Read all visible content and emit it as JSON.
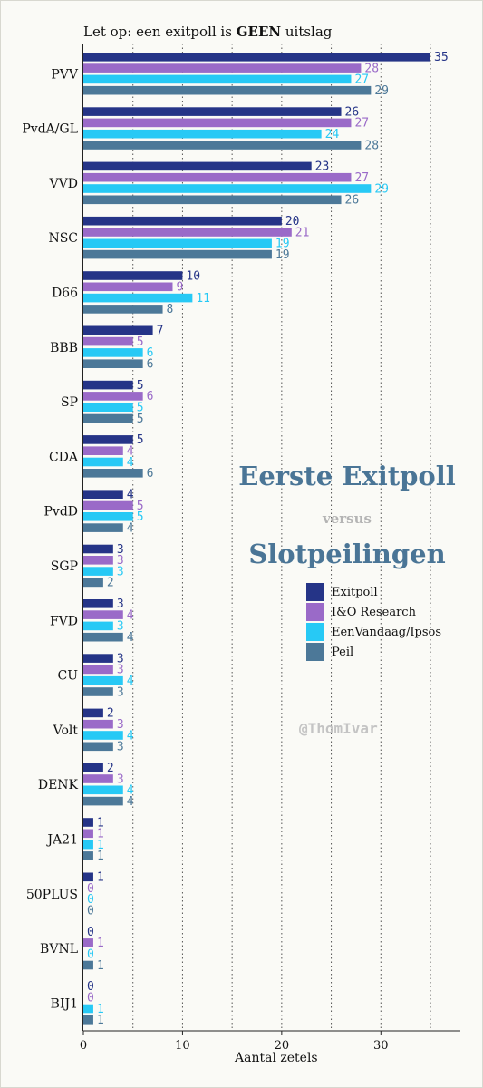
{
  "note": {
    "prefix": "Let op: een exitpoll is ",
    "emphasis": "GEEN",
    "suffix": " uitslag"
  },
  "titles": {
    "line1": "Eerste Exitpoll",
    "line2": "versus",
    "line3": "Slotpeilingen"
  },
  "credit": "@ThomIvar",
  "colors": {
    "Exitpoll": "#253487",
    "I&O Research": "#9a6ac8",
    "EenVandaag/Ipsos": "#27c9f5",
    "Peil": "#4c7898",
    "title": "#4a7596"
  },
  "chart_data": {
    "type": "bar",
    "orientation": "horizontal",
    "categories": [
      "PVV",
      "PvdA/GL",
      "VVD",
      "NSC",
      "D66",
      "BBB",
      "SP",
      "CDA",
      "PvdD",
      "SGP",
      "FVD",
      "CU",
      "Volt",
      "DENK",
      "JA21",
      "50PLUS",
      "BVNL",
      "BIJ1"
    ],
    "series": [
      {
        "name": "Exitpoll",
        "values": [
          35,
          26,
          23,
          20,
          10,
          7,
          5,
          5,
          4,
          3,
          3,
          3,
          2,
          2,
          1,
          1,
          0,
          0
        ]
      },
      {
        "name": "I&O Research",
        "values": [
          28,
          27,
          27,
          21,
          9,
          5,
          6,
          4,
          5,
          3,
          4,
          3,
          3,
          3,
          1,
          0,
          1,
          0
        ]
      },
      {
        "name": "EenVandaag/Ipsos",
        "values": [
          27,
          24,
          29,
          19,
          11,
          6,
          5,
          4,
          5,
          3,
          3,
          4,
          4,
          4,
          1,
          0,
          0,
          1
        ]
      },
      {
        "name": "Peil",
        "values": [
          29,
          28,
          26,
          19,
          8,
          6,
          5,
          6,
          4,
          2,
          4,
          3,
          3,
          4,
          1,
          0,
          1,
          1
        ]
      }
    ],
    "xlabel": "Aantal zetels",
    "xticks": [
      0,
      10,
      20,
      30
    ],
    "xlim": [
      0,
      38
    ],
    "grid": "vertical dotted every 5",
    "legend": "right-middle"
  }
}
